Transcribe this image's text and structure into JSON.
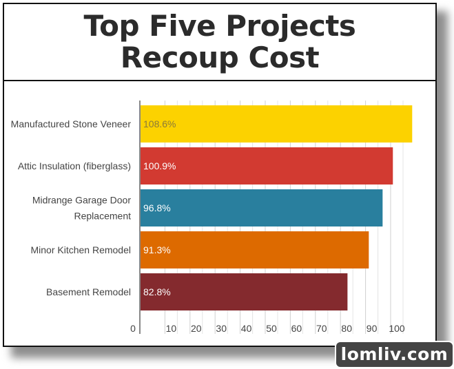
{
  "title": {
    "line1": "Top Five Projects",
    "line2": "Recoup Cost"
  },
  "watermark": "lomliv.com",
  "chart_data": {
    "type": "bar",
    "orientation": "horizontal",
    "categories": [
      [
        "Manufactured Stone Veneer"
      ],
      [
        "Attic Insulation (fiberglass)"
      ],
      [
        "Midrange Garage Door",
        "Replacement"
      ],
      [
        "Minor Kitchen Remodel"
      ],
      [
        "Basement Remodel"
      ]
    ],
    "values": [
      108.6,
      100.9,
      96.8,
      91.3,
      82.8
    ],
    "data_labels": [
      "108.6%",
      "100.9%",
      "96.8%",
      "91.3%",
      "82.8%"
    ],
    "colors": [
      "#fcd200",
      "#d23a31",
      "#297f9e",
      "#dd6a00",
      "#842a2e"
    ],
    "label_colors": [
      "#8a7a3a",
      "#ffffff",
      "#ffffff",
      "#ffffff",
      "#ffffff"
    ],
    "xlim": [
      0,
      110
    ],
    "xticks": [
      0,
      10,
      20,
      30,
      40,
      50,
      60,
      70,
      80,
      90,
      100
    ],
    "xlabel": "",
    "ylabel": "",
    "grid": true
  }
}
